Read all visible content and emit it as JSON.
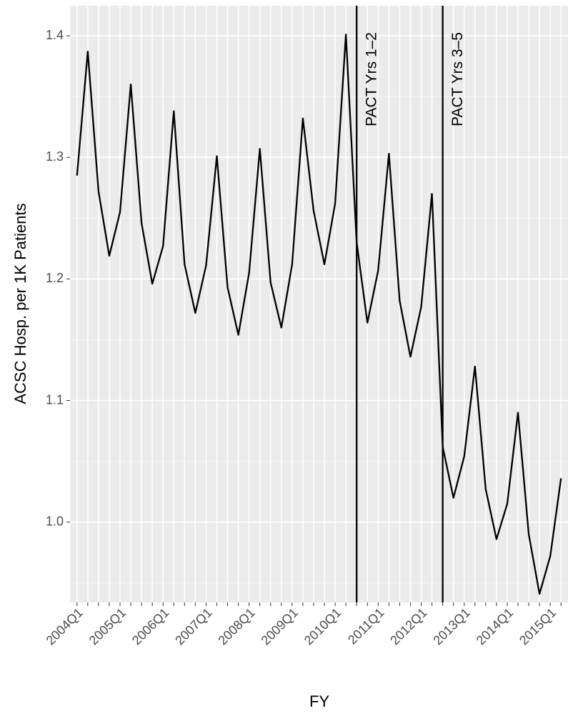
{
  "chart_data": {
    "type": "line",
    "x_label": "FY",
    "y_label": "ACSC Hosp. per 1K Patients",
    "categories": [
      "2004Q1",
      null,
      null,
      null,
      "2005Q1",
      null,
      null,
      null,
      "2006Q1",
      null,
      null,
      null,
      "2007Q1",
      null,
      null,
      null,
      "2008Q1",
      null,
      null,
      null,
      "2009Q1",
      null,
      null,
      null,
      "2010Q1",
      null,
      null,
      null,
      "2011Q1",
      null,
      null,
      null,
      "2012Q1",
      null,
      null,
      null,
      "2013Q1",
      null,
      null,
      null,
      "2014Q1",
      null,
      null,
      null,
      "2015Q1",
      null
    ],
    "values": [
      1.285,
      1.387,
      1.272,
      1.219,
      1.255,
      1.36,
      1.246,
      1.196,
      1.227,
      1.338,
      1.212,
      1.172,
      1.211,
      1.301,
      1.193,
      1.154,
      1.205,
      1.307,
      1.197,
      1.16,
      1.212,
      1.332,
      1.256,
      1.212,
      1.262,
      1.401,
      1.23,
      1.164,
      1.207,
      1.303,
      1.182,
      1.136,
      1.177,
      1.27,
      1.062,
      1.02,
      1.054,
      1.128,
      1.027,
      0.986,
      1.015,
      1.09,
      0.99,
      0.941,
      0.972,
      1.036
    ],
    "color": "#000000",
    "ylim": [
      0.934,
      1.4247
    ],
    "yticks": [
      {
        "value": 1.0,
        "label": "1.0"
      },
      1.1,
      1.2,
      1.3,
      1.4
    ],
    "yminor": [
      0.95,
      1.05,
      1.15,
      1.25,
      1.35
    ],
    "vlines": [
      {
        "x": 26,
        "label": "PACT Yrs 1–2"
      },
      {
        "x": 34,
        "label": "PACT Yrs 3–5"
      }
    ],
    "grid": true
  }
}
